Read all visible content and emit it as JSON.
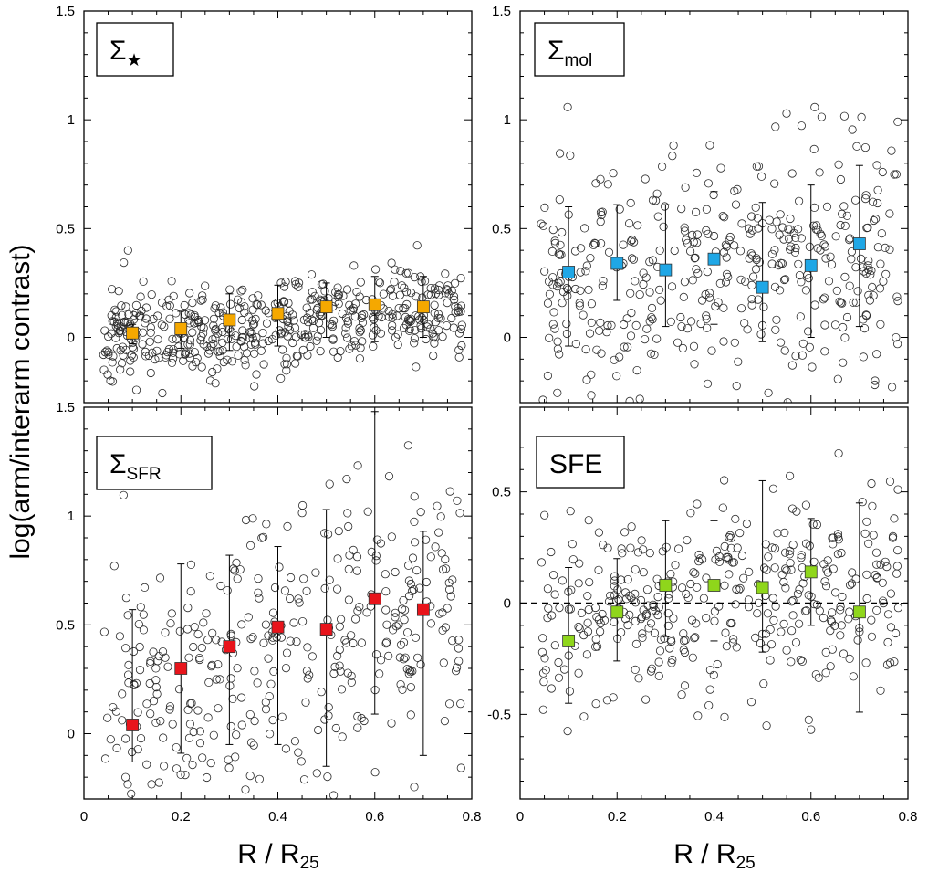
{
  "figure": {
    "y_axis_title": "log(arm/interarm contrast)",
    "x_axis_title_left": {
      "main": "R / R",
      "sub": "25"
    },
    "x_axis_title_right": {
      "main": "R / R",
      "sub": "25"
    }
  },
  "chart_data": [
    {
      "type": "scatter",
      "id": "stellar",
      "label": {
        "main": "Σ",
        "sub": "★"
      },
      "xlim": [
        0,
        0.8
      ],
      "ylim": [
        -0.3,
        1.5
      ],
      "xticks": [
        "0",
        "0.2",
        "0.4",
        "0.6",
        "0.8"
      ],
      "yticks": [
        "0",
        "0.5",
        "1",
        "1.5"
      ],
      "ytick_values": [
        0,
        0.5,
        1,
        1.5
      ],
      "marker_color": "#f5a800",
      "binned": {
        "x": [
          0.1,
          0.2,
          0.3,
          0.4,
          0.5,
          0.6,
          0.7
        ],
        "y": [
          0.02,
          0.04,
          0.08,
          0.11,
          0.14,
          0.15,
          0.14
        ],
        "err_low": [
          -0.03,
          -0.05,
          -0.06,
          -0.04,
          0.0,
          -0.02,
          0.0
        ],
        "err_high": [
          0.06,
          0.12,
          0.2,
          0.24,
          0.25,
          0.28,
          0.28
        ]
      },
      "scatter": {
        "n": 520,
        "x_range": [
          0.04,
          0.78
        ],
        "y_center": [
          0.0,
          0.13
        ],
        "spread": 0.11,
        "seed": 11
      }
    },
    {
      "type": "scatter",
      "id": "molecular",
      "label": {
        "main": "Σ",
        "sub": "mol"
      },
      "xlim": [
        0,
        0.8
      ],
      "ylim": [
        -0.3,
        1.5
      ],
      "xticks": [
        "0",
        "0.2",
        "0.4",
        "0.6",
        "0.8"
      ],
      "yticks": [
        "0",
        "0.5",
        "1",
        "1.5"
      ],
      "ytick_values": [
        0,
        0.5,
        1,
        1.5
      ],
      "marker_color": "#1fa7e6",
      "binned": {
        "x": [
          0.1,
          0.2,
          0.3,
          0.4,
          0.5,
          0.6,
          0.7
        ],
        "y": [
          0.3,
          0.34,
          0.31,
          0.36,
          0.23,
          0.33,
          0.43
        ],
        "err_low": [
          -0.04,
          0.17,
          0.05,
          0.06,
          -0.02,
          0.0,
          0.05
        ],
        "err_high": [
          0.6,
          0.61,
          0.61,
          0.67,
          0.62,
          0.7,
          0.79
        ]
      },
      "scatter": {
        "n": 430,
        "x_range": [
          0.04,
          0.78
        ],
        "y_center": [
          0.28,
          0.38
        ],
        "spread": 0.27,
        "seed": 23
      }
    },
    {
      "type": "scatter",
      "id": "sfr",
      "label": {
        "main": "Σ",
        "sub": "SFR"
      },
      "xlim": [
        0,
        0.8
      ],
      "ylim": [
        -0.3,
        1.5
      ],
      "xticks": [
        "0",
        "0.2",
        "0.4",
        "0.6",
        "0.8"
      ],
      "yticks": [
        "0",
        "0.5",
        "1",
        "1.5"
      ],
      "ytick_values": [
        0,
        0.5,
        1,
        1.5
      ],
      "marker_color": "#e8141b",
      "binned": {
        "x": [
          0.1,
          0.2,
          0.3,
          0.4,
          0.5,
          0.6,
          0.7
        ],
        "y": [
          0.04,
          0.3,
          0.4,
          0.49,
          0.48,
          0.62,
          0.57
        ],
        "err_low": [
          -0.13,
          -0.09,
          -0.05,
          -0.05,
          -0.15,
          0.09,
          -0.1
        ],
        "err_high": [
          0.57,
          0.78,
          0.82,
          0.86,
          1.03,
          1.48,
          0.93
        ]
      },
      "scatter": {
        "n": 380,
        "x_range": [
          0.04,
          0.78
        ],
        "y_center": [
          0.1,
          0.6
        ],
        "spread": 0.32,
        "seed": 37
      }
    },
    {
      "type": "scatter",
      "id": "sfe",
      "label": {
        "main": "SFE",
        "sub": ""
      },
      "xlim": [
        0,
        0.8
      ],
      "ylim": [
        -0.88,
        0.88
      ],
      "xticks": [
        "0",
        "0.2",
        "0.4",
        "0.6",
        "0.8"
      ],
      "yticks": [
        "-0.5",
        "0",
        "0.5"
      ],
      "ytick_values": [
        -0.5,
        0,
        0.5
      ],
      "zero_line": true,
      "marker_color": "#8fd61b",
      "binned": {
        "x": [
          0.1,
          0.2,
          0.3,
          0.4,
          0.5,
          0.6,
          0.7
        ],
        "y": [
          -0.17,
          -0.04,
          0.08,
          0.08,
          0.07,
          0.14,
          -0.04
        ],
        "err_low": [
          -0.45,
          -0.26,
          -0.15,
          -0.17,
          -0.22,
          -0.1,
          -0.49
        ],
        "err_high": [
          0.16,
          0.2,
          0.37,
          0.37,
          0.55,
          0.38,
          0.45
        ]
      },
      "scatter": {
        "n": 400,
        "x_range": [
          0.04,
          0.78
        ],
        "y_center": [
          -0.08,
          0.1
        ],
        "spread": 0.22,
        "seed": 53
      }
    }
  ]
}
